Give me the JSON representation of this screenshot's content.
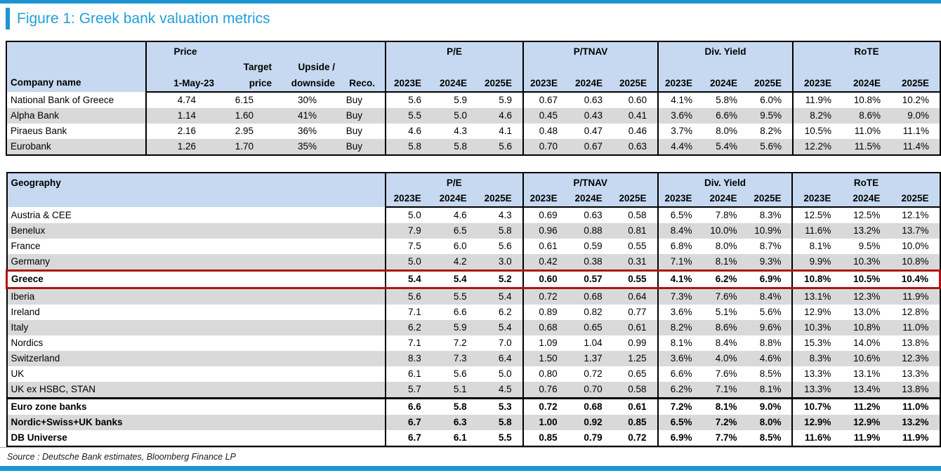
{
  "figure_title": "Figure 1: Greek bank valuation metrics",
  "source_line": "Source : Deutsche Bank estimates, Bloomberg Finance LP",
  "colors": {
    "accent_blue": "#1b96d2",
    "title_blue": "#229fd8",
    "header_fill": "#c6d9f0",
    "row_stripe": "#d9d9d9",
    "highlight_red": "#b01312"
  },
  "metric_groups": [
    "P/E",
    "P/TNAV",
    "Div. Yield",
    "RoTE"
  ],
  "year_columns": [
    "2023E",
    "2024E",
    "2025E"
  ],
  "company_table": {
    "headers": {
      "company": "Company name",
      "price_group": "Price",
      "price_date": "1-May-23",
      "target_line1": "Target",
      "target_line2": "price",
      "upside_line1": "Upside /",
      "upside_line2": "downside",
      "reco": "Reco."
    },
    "rows": [
      {
        "name": "National Bank of Greece",
        "price": "4.74",
        "target": "6.15",
        "upside": "30%",
        "reco": "Buy",
        "values": [
          "5.6",
          "5.9",
          "5.9",
          "0.67",
          "0.63",
          "0.60",
          "4.1%",
          "5.8%",
          "6.0%",
          "11.9%",
          "10.8%",
          "10.2%"
        ]
      },
      {
        "name": "Alpha Bank",
        "price": "1.14",
        "target": "1.60",
        "upside": "41%",
        "reco": "Buy",
        "values": [
          "5.5",
          "5.0",
          "4.6",
          "0.45",
          "0.43",
          "0.41",
          "3.6%",
          "6.6%",
          "9.5%",
          "8.2%",
          "8.6%",
          "9.0%"
        ]
      },
      {
        "name": "Piraeus Bank",
        "price": "2.16",
        "target": "2.95",
        "upside": "36%",
        "reco": "Buy",
        "values": [
          "4.6",
          "4.3",
          "4.1",
          "0.48",
          "0.47",
          "0.46",
          "3.7%",
          "8.0%",
          "8.2%",
          "10.5%",
          "11.0%",
          "11.1%"
        ]
      },
      {
        "name": "Eurobank",
        "price": "1.26",
        "target": "1.70",
        "upside": "35%",
        "reco": "Buy",
        "values": [
          "5.8",
          "5.8",
          "5.6",
          "0.70",
          "0.67",
          "0.63",
          "4.4%",
          "5.4%",
          "5.6%",
          "12.2%",
          "11.5%",
          "11.4%"
        ]
      }
    ]
  },
  "geo_table": {
    "header": "Geography",
    "rows": [
      {
        "name": "Austria & CEE",
        "style": "",
        "values": [
          "5.0",
          "4.6",
          "4.3",
          "0.69",
          "0.63",
          "0.58",
          "6.5%",
          "7.8%",
          "8.3%",
          "12.5%",
          "12.5%",
          "12.1%"
        ]
      },
      {
        "name": "Benelux",
        "style": "",
        "values": [
          "7.9",
          "6.5",
          "5.8",
          "0.96",
          "0.88",
          "0.81",
          "8.4%",
          "10.0%",
          "10.9%",
          "11.6%",
          "13.2%",
          "13.7%"
        ]
      },
      {
        "name": "France",
        "style": "",
        "values": [
          "7.5",
          "6.0",
          "5.6",
          "0.61",
          "0.59",
          "0.55",
          "6.8%",
          "8.0%",
          "8.7%",
          "8.1%",
          "9.5%",
          "10.0%"
        ]
      },
      {
        "name": "Germany",
        "style": "",
        "values": [
          "5.0",
          "4.2",
          "3.0",
          "0.42",
          "0.38",
          "0.31",
          "7.1%",
          "8.1%",
          "9.3%",
          "9.9%",
          "10.3%",
          "10.8%"
        ]
      },
      {
        "name": "Greece",
        "style": "highlight",
        "values": [
          "5.4",
          "5.4",
          "5.2",
          "0.60",
          "0.57",
          "0.55",
          "4.1%",
          "6.2%",
          "6.9%",
          "10.8%",
          "10.5%",
          "10.4%"
        ]
      },
      {
        "name": "Iberia",
        "style": "",
        "values": [
          "5.6",
          "5.5",
          "5.4",
          "0.72",
          "0.68",
          "0.64",
          "7.3%",
          "7.6%",
          "8.4%",
          "13.1%",
          "12.3%",
          "11.9%"
        ]
      },
      {
        "name": "Ireland",
        "style": "",
        "values": [
          "7.1",
          "6.6",
          "6.2",
          "0.89",
          "0.82",
          "0.77",
          "3.6%",
          "5.1%",
          "5.6%",
          "12.9%",
          "13.0%",
          "12.8%"
        ]
      },
      {
        "name": "Italy",
        "style": "",
        "values": [
          "6.2",
          "5.9",
          "5.4",
          "0.68",
          "0.65",
          "0.61",
          "8.2%",
          "8.6%",
          "9.6%",
          "10.3%",
          "10.8%",
          "11.0%"
        ]
      },
      {
        "name": "Nordics",
        "style": "",
        "values": [
          "7.1",
          "7.2",
          "7.0",
          "1.09",
          "1.04",
          "0.99",
          "8.1%",
          "8.4%",
          "8.8%",
          "15.3%",
          "14.0%",
          "13.8%"
        ]
      },
      {
        "name": "Switzerland",
        "style": "",
        "values": [
          "8.3",
          "7.3",
          "6.4",
          "1.50",
          "1.37",
          "1.25",
          "3.6%",
          "4.0%",
          "4.6%",
          "8.3%",
          "10.6%",
          "12.3%"
        ]
      },
      {
        "name": "UK",
        "style": "",
        "values": [
          "6.1",
          "5.6",
          "5.0",
          "0.80",
          "0.72",
          "0.65",
          "6.6%",
          "7.6%",
          "8.5%",
          "13.3%",
          "13.1%",
          "13.3%"
        ]
      },
      {
        "name": "UK ex HSBC, STAN",
        "style": "",
        "values": [
          "5.7",
          "5.1",
          "4.5",
          "0.76",
          "0.70",
          "0.58",
          "6.2%",
          "7.1%",
          "8.1%",
          "13.3%",
          "13.4%",
          "13.8%"
        ]
      },
      {
        "name": "Euro zone banks",
        "style": "total",
        "sep": true,
        "values": [
          "6.6",
          "5.8",
          "5.3",
          "0.72",
          "0.68",
          "0.61",
          "7.2%",
          "8.1%",
          "9.0%",
          "10.7%",
          "11.2%",
          "11.0%"
        ]
      },
      {
        "name": "Nordic+Swiss+UK banks",
        "style": "total",
        "values": [
          "6.7",
          "6.3",
          "5.8",
          "1.00",
          "0.92",
          "0.85",
          "6.5%",
          "7.2%",
          "8.0%",
          "12.9%",
          "12.9%",
          "13.2%"
        ]
      },
      {
        "name": "DB Universe",
        "style": "total",
        "values": [
          "6.7",
          "6.1",
          "5.5",
          "0.85",
          "0.79",
          "0.72",
          "6.9%",
          "7.7%",
          "8.5%",
          "11.6%",
          "11.9%",
          "11.9%"
        ]
      }
    ]
  }
}
